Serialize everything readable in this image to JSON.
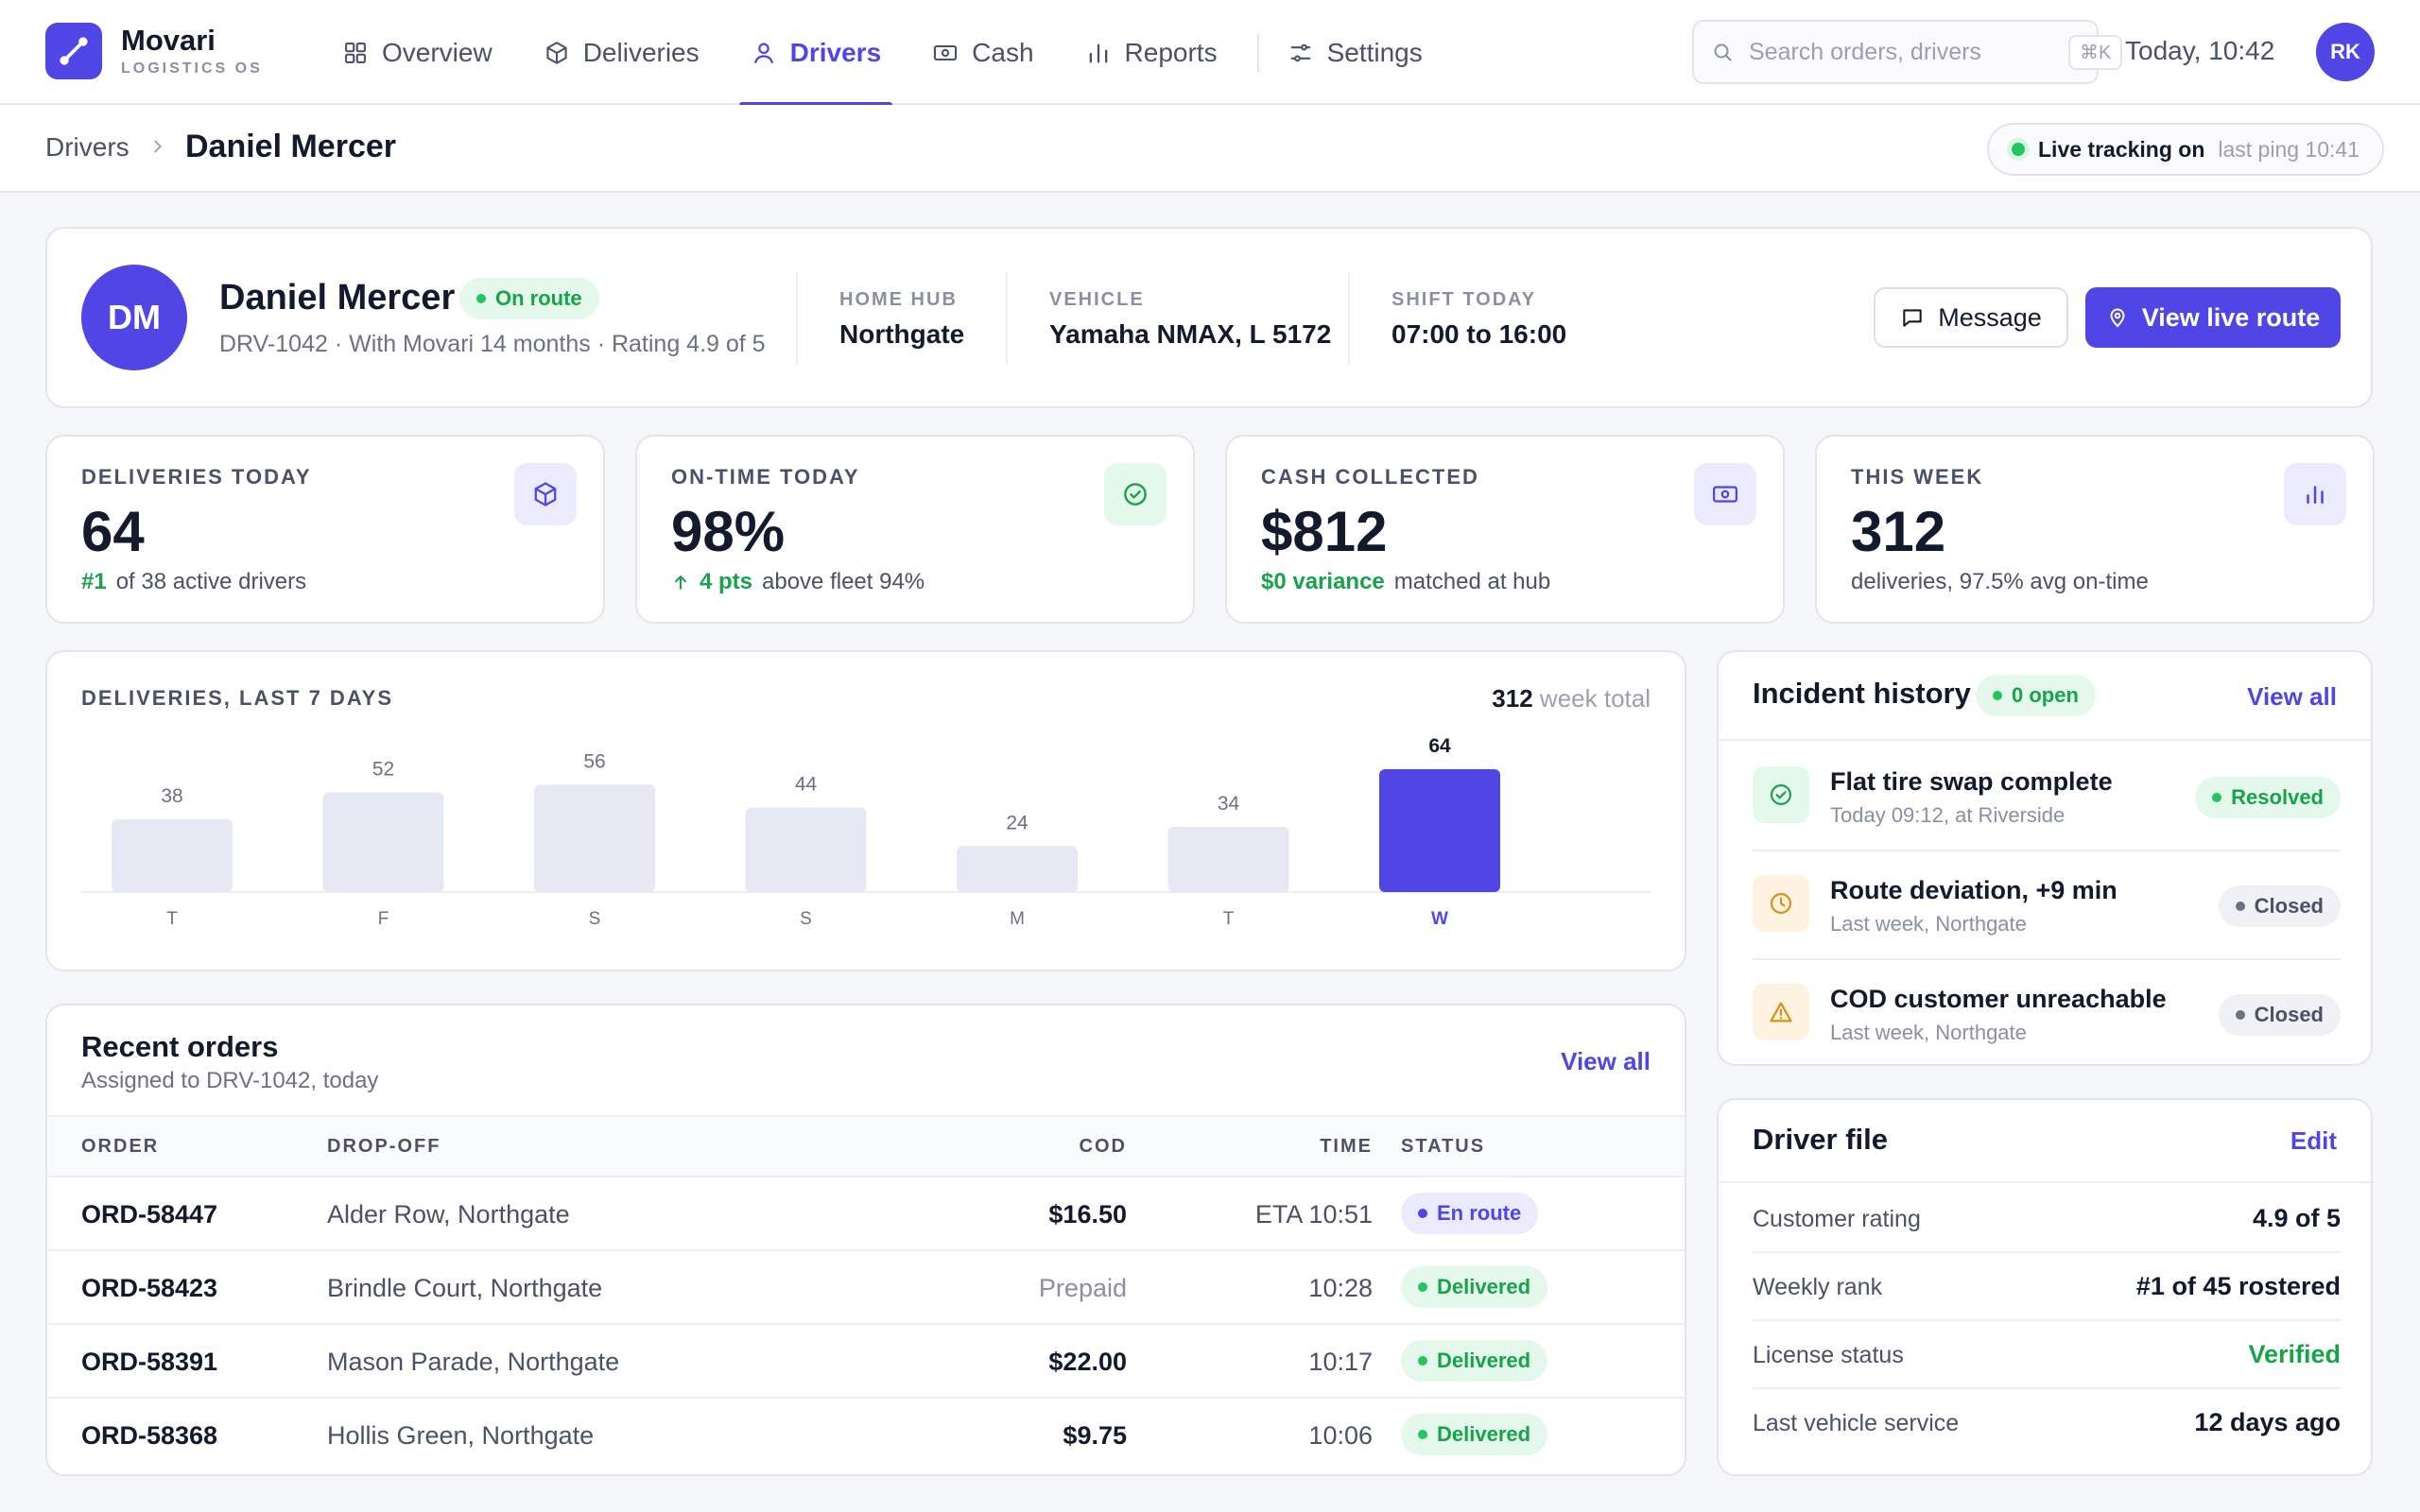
{
  "app": {
    "name": "Movari",
    "subtitle": "LOGISTICS OS",
    "nav": [
      {
        "label": "Overview",
        "icon": "grid-icon"
      },
      {
        "label": "Deliveries",
        "icon": "box-icon"
      },
      {
        "label": "Drivers",
        "icon": "user-icon",
        "active": true
      },
      {
        "label": "Cash",
        "icon": "banknote-icon"
      },
      {
        "label": "Reports",
        "icon": "bar-chart-icon"
      },
      {
        "label": "Settings",
        "icon": "sliders-icon"
      }
    ],
    "search": {
      "placeholder": "Search orders, drivers",
      "shortcut": "⌘K"
    },
    "clock": "Today, 10:42",
    "user_initials": "RK"
  },
  "breadcrumb": {
    "parent": "Drivers",
    "current": "Daniel Mercer"
  },
  "live": {
    "label": "Live tracking on",
    "ping": "last ping 10:41"
  },
  "profile": {
    "initials": "DM",
    "name": "Daniel Mercer",
    "status": "On route",
    "meta": "DRV-1042 · With Movari 14 months · Rating 4.9 of 5",
    "fields": [
      {
        "label": "HOME HUB",
        "value": "Northgate"
      },
      {
        "label": "VEHICLE",
        "value": "Yamaha NMAX, L 5172"
      },
      {
        "label": "SHIFT TODAY",
        "value": "07:00 to 16:00"
      }
    ],
    "message_label": "Message",
    "route_label": "View live route"
  },
  "stats": [
    {
      "label": "DELIVERIES TODAY",
      "value": "64",
      "accent": "#1",
      "sub": "of 38 active drivers",
      "icon": "box-icon"
    },
    {
      "label": "ON-TIME TODAY",
      "value": "98%",
      "accent": "4 pts",
      "sub": "above fleet 94%",
      "icon": "check-circle-icon"
    },
    {
      "label": "CASH COLLECTED",
      "value": "$812",
      "accent": "$0 variance",
      "sub": "matched at hub",
      "icon": "banknote-icon"
    },
    {
      "label": "THIS WEEK",
      "value": "312",
      "accent": "",
      "sub": "deliveries, 97.5% avg on-time",
      "icon": "bar-chart-icon"
    }
  ],
  "chart_data": {
    "type": "bar",
    "title": "DELIVERIES, LAST 7 DAYS",
    "total_value": "312",
    "total_label": "week total",
    "categories": [
      "T",
      "F",
      "S",
      "S",
      "M",
      "T",
      "W"
    ],
    "values": [
      38,
      52,
      56,
      44,
      24,
      34,
      64
    ],
    "highlight_index": 6,
    "colors": {
      "bar": "#e6e8f4",
      "highlight": "#4f46e5"
    }
  },
  "orders": {
    "title": "Recent orders",
    "subtitle": "Assigned to DRV-1042, today",
    "view_all": "View all",
    "columns": [
      "ORDER",
      "DROP-OFF",
      "COD",
      "TIME",
      "STATUS"
    ],
    "rows": [
      {
        "order": "ORD-58447",
        "drop": "Alder Row, Northgate",
        "cod": "$16.50",
        "time": "ETA 10:51",
        "status": "En route",
        "tone": "indigo"
      },
      {
        "order": "ORD-58423",
        "drop": "Brindle Court, Northgate",
        "cod": "Prepaid",
        "time": "10:28",
        "status": "Delivered",
        "tone": "green"
      },
      {
        "order": "ORD-58391",
        "drop": "Mason Parade, Northgate",
        "cod": "$22.00",
        "time": "10:17",
        "status": "Delivered",
        "tone": "green"
      },
      {
        "order": "ORD-58368",
        "drop": "Hollis Green, Northgate",
        "cod": "$9.75",
        "time": "10:06",
        "status": "Delivered",
        "tone": "green"
      }
    ]
  },
  "incidents": {
    "title": "Incident history",
    "open_badge": "0 open",
    "view_all": "View all",
    "items": [
      {
        "title": "Flat tire swap complete",
        "sub": "Today 09:12, at Riverside",
        "status": "Resolved",
        "tone": "green",
        "icon": "check-circle-icon"
      },
      {
        "title": "Route deviation, +9 min",
        "sub": "Last week, Northgate",
        "status": "Closed",
        "tone": "gray",
        "icon": "clock-icon"
      },
      {
        "title": "COD customer unreachable",
        "sub": "Last week, Northgate",
        "status": "Closed",
        "tone": "gray",
        "icon": "warning-icon"
      }
    ]
  },
  "driver_file": {
    "title": "Driver file",
    "edit": "Edit",
    "rows": [
      {
        "label": "Customer rating",
        "value": "4.9 of 5"
      },
      {
        "label": "Weekly rank",
        "value": "#1 of 45 rostered"
      },
      {
        "label": "License status",
        "value": "Verified"
      },
      {
        "label": "Last vehicle service",
        "value": "12 days ago"
      }
    ]
  }
}
